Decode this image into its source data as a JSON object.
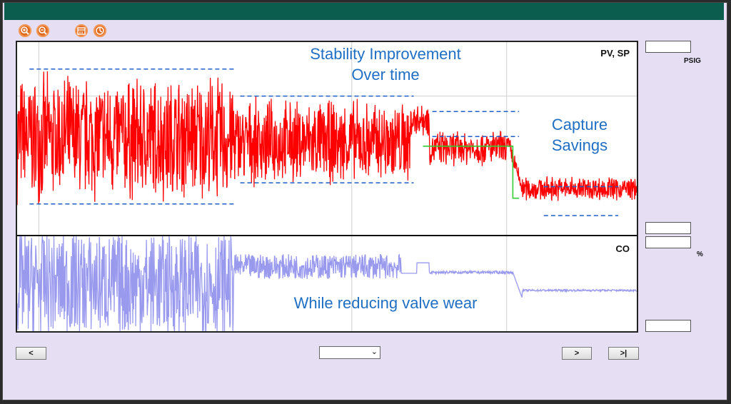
{
  "toolbar": {
    "icons": [
      "zoom-in-icon",
      "zoom-out-icon",
      "calendar-icon",
      "clock-icon"
    ]
  },
  "side_panel": {
    "pv_unit": "PSIG",
    "co_unit": "%"
  },
  "nav": {
    "prev_label": "<",
    "next_label": ">",
    "last_label": ">|",
    "select_value": ""
  },
  "colors": {
    "pv": "#ff0000",
    "sp": "#33cc33",
    "co": "#9999ee",
    "band": "#1f5fc8",
    "annotation": "#1f6fc4",
    "title_bar": "#0b5e4e",
    "window_bg": "#e6dff4"
  },
  "chart_data": [
    {
      "type": "line",
      "panel_label": "PV, SP",
      "grid": true,
      "series": [
        {
          "name": "PV",
          "color": "#ff0000"
        },
        {
          "name": "SP",
          "color": "#33cc33"
        }
      ],
      "regimes": [
        {
          "x_start": 0,
          "x_end": 0.35,
          "center": 0.5,
          "amplitude": 0.36
        },
        {
          "x_start": 0.35,
          "x_end": 0.64,
          "center": 0.48,
          "amplitude": 0.24
        },
        {
          "x_start": 0.64,
          "x_end": 0.8,
          "center": 0.45,
          "amplitude": 0.1
        },
        {
          "x_start": 0.8,
          "x_end": 1.0,
          "center": 0.24,
          "amplitude": 0.07
        }
      ],
      "bands": [
        {
          "x_start": 0.02,
          "x_end": 0.35,
          "y_top": 0.86,
          "y_bottom": 0.16
        },
        {
          "x_start": 0.36,
          "x_end": 0.64,
          "y_top": 0.72,
          "y_bottom": 0.27
        },
        {
          "x_start": 0.67,
          "x_end": 0.81,
          "y_top": 0.64,
          "y_bottom": 0.51
        },
        {
          "x_start": 0.85,
          "x_end": 0.97,
          "y_top": 0.25,
          "y_bottom": 0.1
        }
      ],
      "annotations": [
        "Stability Improvement",
        "Over time",
        "Capture",
        "Savings"
      ]
    },
    {
      "type": "line",
      "panel_label": "CO",
      "grid": true,
      "series": [
        {
          "name": "CO",
          "color": "#9999ee"
        }
      ],
      "annotations": [
        "While reducing valve wear"
      ]
    }
  ]
}
